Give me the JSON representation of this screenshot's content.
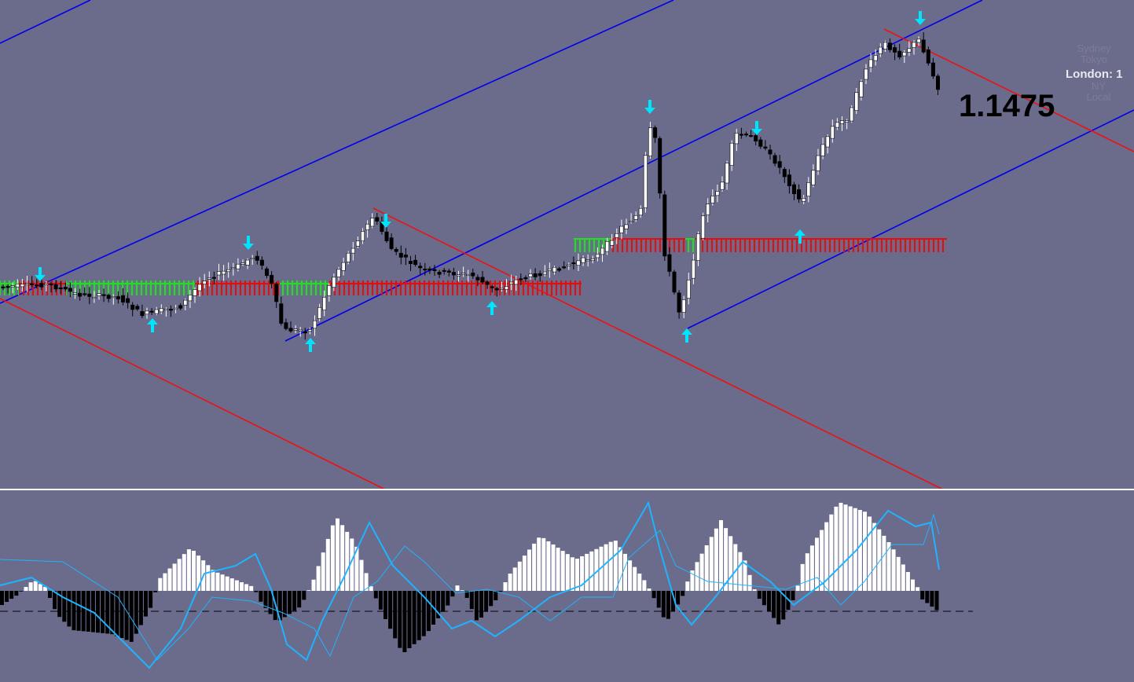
{
  "sessions": {
    "sydney": "Sydney",
    "tokyo": "Tokyo",
    "london": "London:  1",
    "ny": "NY",
    "local": "Local"
  },
  "price_label": "1.1475"
}
